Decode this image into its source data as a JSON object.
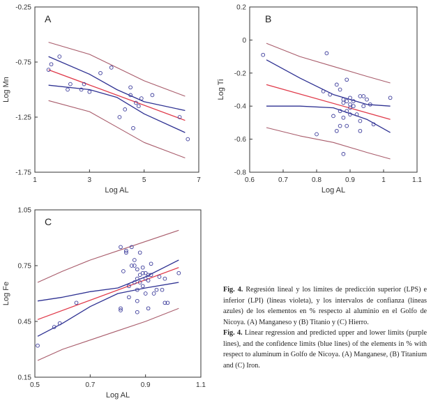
{
  "chart_data": [
    {
      "type": "scatter",
      "panel_label": "A",
      "xlabel": "Log AL",
      "ylabel": "Log Mn",
      "xlim": [
        1,
        7
      ],
      "ylim": [
        -1.75,
        -0.25
      ],
      "xticks": [
        "1",
        "3",
        "5",
        "7"
      ],
      "yticks": [
        "-0.25",
        "-0.75",
        "-1.25",
        "-1.75"
      ],
      "points": [
        [
          1.5,
          -0.82
        ],
        [
          1.6,
          -0.77
        ],
        [
          1.9,
          -0.7
        ],
        [
          2.2,
          -1.0
        ],
        [
          2.3,
          -0.95
        ],
        [
          2.7,
          -1.0
        ],
        [
          2.8,
          -0.95
        ],
        [
          3.0,
          -1.02
        ],
        [
          3.4,
          -0.85
        ],
        [
          3.8,
          -0.8
        ],
        [
          4.1,
          -1.25
        ],
        [
          4.3,
          -1.18
        ],
        [
          4.5,
          -0.98
        ],
        [
          4.5,
          -1.05
        ],
        [
          4.6,
          -1.35
        ],
        [
          4.7,
          -1.12
        ],
        [
          4.8,
          -1.15
        ],
        [
          4.9,
          -1.08
        ],
        [
          5.3,
          -1.05
        ],
        [
          6.3,
          -1.25
        ],
        [
          6.6,
          -1.45
        ]
      ],
      "lines": {
        "regression": [
          [
            1.5,
            -0.82
          ],
          [
            6.5,
            -1.28
          ]
        ],
        "confidence_upper": [
          [
            1.5,
            -0.7
          ],
          [
            3,
            -0.86
          ],
          [
            4,
            -1.0
          ],
          [
            5,
            -1.11
          ],
          [
            6.5,
            -1.19
          ]
        ],
        "confidence_lower": [
          [
            1.5,
            -0.96
          ],
          [
            3,
            -1.0
          ],
          [
            4,
            -1.07
          ],
          [
            5,
            -1.22
          ],
          [
            6.5,
            -1.39
          ]
        ],
        "prediction_upper": [
          [
            1.5,
            -0.57
          ],
          [
            3,
            -0.68
          ],
          [
            4,
            -0.8
          ],
          [
            5,
            -0.92
          ],
          [
            6.5,
            -1.06
          ]
        ],
        "prediction_lower": [
          [
            1.5,
            -1.1
          ],
          [
            3,
            -1.2
          ],
          [
            4,
            -1.34
          ],
          [
            5,
            -1.48
          ],
          [
            6.5,
            -1.62
          ]
        ]
      }
    },
    {
      "type": "scatter",
      "panel_label": "B",
      "xlabel": "Log AL",
      "ylabel": "Log Ti",
      "xlim": [
        0.6,
        1.1
      ],
      "ylim": [
        -0.8,
        0.2
      ],
      "xticks": [
        "0.6",
        "0.7",
        "0.8",
        "0.9",
        "1",
        "1.1"
      ],
      "yticks": [
        "0.2",
        "0",
        "-0.2",
        "-0.4",
        "-0.6",
        "-0.8"
      ],
      "points": [
        [
          0.64,
          -0.09
        ],
        [
          0.8,
          -0.57
        ],
        [
          0.82,
          -0.31
        ],
        [
          0.83,
          -0.08
        ],
        [
          0.84,
          -0.33
        ],
        [
          0.85,
          -0.46
        ],
        [
          0.86,
          -0.55
        ],
        [
          0.86,
          -0.27
        ],
        [
          0.87,
          -0.43
        ],
        [
          0.87,
          -0.52
        ],
        [
          0.87,
          -0.3
        ],
        [
          0.88,
          -0.36
        ],
        [
          0.88,
          -0.38
        ],
        [
          0.88,
          -0.47
        ],
        [
          0.88,
          -0.69
        ],
        [
          0.89,
          -0.24
        ],
        [
          0.89,
          -0.37
        ],
        [
          0.89,
          -0.43
        ],
        [
          0.89,
          -0.52
        ],
        [
          0.9,
          -0.35
        ],
        [
          0.9,
          -0.39
        ],
        [
          0.9,
          -0.41
        ],
        [
          0.9,
          -0.45
        ],
        [
          0.91,
          -0.37
        ],
        [
          0.91,
          -0.4
        ],
        [
          0.92,
          -0.45
        ],
        [
          0.93,
          -0.34
        ],
        [
          0.93,
          -0.49
        ],
        [
          0.93,
          -0.55
        ],
        [
          0.94,
          -0.34
        ],
        [
          0.94,
          -0.4
        ],
        [
          0.95,
          -0.36
        ],
        [
          0.96,
          -0.39
        ],
        [
          0.97,
          -0.51
        ],
        [
          1.02,
          -0.35
        ]
      ],
      "lines": {
        "regression": [
          [
            0.65,
            -0.27
          ],
          [
            1.02,
            -0.48
          ]
        ],
        "confidence_upper": [
          [
            0.65,
            -0.12
          ],
          [
            0.75,
            -0.23
          ],
          [
            0.85,
            -0.33
          ],
          [
            0.95,
            -0.39
          ],
          [
            1.02,
            -0.4
          ]
        ],
        "confidence_lower": [
          [
            0.65,
            -0.4
          ],
          [
            0.75,
            -0.4
          ],
          [
            0.85,
            -0.41
          ],
          [
            0.95,
            -0.48
          ],
          [
            1.02,
            -0.56
          ]
        ],
        "prediction_upper": [
          [
            0.65,
            -0.02
          ],
          [
            0.75,
            -0.1
          ],
          [
            0.85,
            -0.16
          ],
          [
            0.95,
            -0.22
          ],
          [
            1.02,
            -0.26
          ]
        ],
        "prediction_lower": [
          [
            0.65,
            -0.53
          ],
          [
            0.75,
            -0.58
          ],
          [
            0.85,
            -0.62
          ],
          [
            0.95,
            -0.68
          ],
          [
            1.02,
            -0.72
          ]
        ]
      }
    },
    {
      "type": "scatter",
      "panel_label": "C",
      "xlabel": "Log AL",
      "ylabel": "Log Fe",
      "xlim": [
        0.5,
        1.1
      ],
      "ylim": [
        0.15,
        1.05
      ],
      "xticks": [
        "0.5",
        "0.7",
        "0.9",
        "1.1"
      ],
      "yticks": [
        "1.05",
        "0.75",
        "0.45",
        "0.15"
      ],
      "points": [
        [
          0.51,
          0.32
        ],
        [
          0.57,
          0.42
        ],
        [
          0.59,
          0.44
        ],
        [
          0.65,
          0.55
        ],
        [
          0.81,
          0.51
        ],
        [
          0.81,
          0.52
        ],
        [
          0.81,
          0.85
        ],
        [
          0.82,
          0.72
        ],
        [
          0.83,
          0.82
        ],
        [
          0.83,
          0.83
        ],
        [
          0.84,
          0.58
        ],
        [
          0.84,
          0.64
        ],
        [
          0.85,
          0.75
        ],
        [
          0.85,
          0.85
        ],
        [
          0.86,
          0.66
        ],
        [
          0.86,
          0.75
        ],
        [
          0.86,
          0.78
        ],
        [
          0.87,
          0.5
        ],
        [
          0.87,
          0.56
        ],
        [
          0.87,
          0.62
        ],
        [
          0.87,
          0.68
        ],
        [
          0.87,
          0.73
        ],
        [
          0.88,
          0.82
        ],
        [
          0.88,
          0.66
        ],
        [
          0.88,
          0.7
        ],
        [
          0.89,
          0.64
        ],
        [
          0.89,
          0.71
        ],
        [
          0.89,
          0.74
        ],
        [
          0.9,
          0.6
        ],
        [
          0.9,
          0.68
        ],
        [
          0.9,
          0.71
        ],
        [
          0.91,
          0.52
        ],
        [
          0.91,
          0.67
        ],
        [
          0.91,
          0.7
        ],
        [
          0.92,
          0.76
        ],
        [
          0.92,
          0.7
        ],
        [
          0.93,
          0.6
        ],
        [
          0.94,
          0.62
        ],
        [
          0.95,
          0.69
        ],
        [
          0.96,
          0.62
        ],
        [
          0.97,
          0.55
        ],
        [
          0.97,
          0.68
        ],
        [
          0.98,
          0.55
        ],
        [
          1.02,
          0.71
        ]
      ],
      "lines": {
        "regression": [
          [
            0.51,
            0.46
          ],
          [
            1.02,
            0.74
          ]
        ],
        "confidence_upper": [
          [
            0.51,
            0.56
          ],
          [
            0.6,
            0.58
          ],
          [
            0.7,
            0.61
          ],
          [
            0.8,
            0.63
          ],
          [
            0.9,
            0.69
          ],
          [
            1.02,
            0.78
          ]
        ],
        "confidence_lower": [
          [
            0.51,
            0.37
          ],
          [
            0.6,
            0.44
          ],
          [
            0.7,
            0.53
          ],
          [
            0.8,
            0.6
          ],
          [
            0.9,
            0.63
          ],
          [
            1.02,
            0.66
          ]
        ],
        "prediction_upper": [
          [
            0.51,
            0.66
          ],
          [
            0.6,
            0.72
          ],
          [
            0.7,
            0.78
          ],
          [
            0.8,
            0.83
          ],
          [
            0.9,
            0.88
          ],
          [
            1.02,
            0.94
          ]
        ],
        "prediction_lower": [
          [
            0.51,
            0.24
          ],
          [
            0.6,
            0.3
          ],
          [
            0.7,
            0.35
          ],
          [
            0.8,
            0.4
          ],
          [
            0.9,
            0.45
          ],
          [
            1.02,
            0.52
          ]
        ]
      }
    }
  ],
  "colors": {
    "regression": "#e03a4a",
    "confidence": "#2e3192",
    "prediction": "#a85b6a",
    "points": "#3a3a9a"
  },
  "caption": {
    "es_label": "Fig. 4.",
    "es_text": "Regresión lineal y los límites de predicción superior (LPS) e inferior (LPI) (líneas violeta), y los intervalos de confianza (líneas azules) de los elementos en % respecto al aluminio en el Golfo de Nicoya. (A) Manganeso y (B) Titanio y (C) Hierro.",
    "en_label": "Fig. 4.",
    "en_text": "Linear regression and predicted upper and lower limits (purple lines), and the confidence limits (blue lines) of the elements in % with respect to aluminum in Golfo de Nicoya. (A) Manganese, (B) Titanium and (C) Iron."
  }
}
